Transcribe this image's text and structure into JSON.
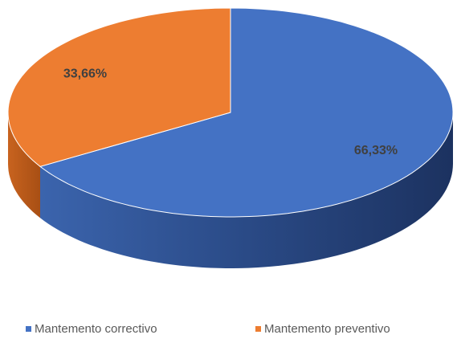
{
  "chart_data": {
    "type": "pie",
    "categories": [
      "Mantemento correctivo",
      "Mantemento preventivo"
    ],
    "values": [
      66.33,
      33.66
    ],
    "value_labels": [
      "66,33%",
      "33,66%"
    ],
    "colors": [
      "#4472c4",
      "#ed7d31"
    ],
    "legend": "bottom"
  }
}
